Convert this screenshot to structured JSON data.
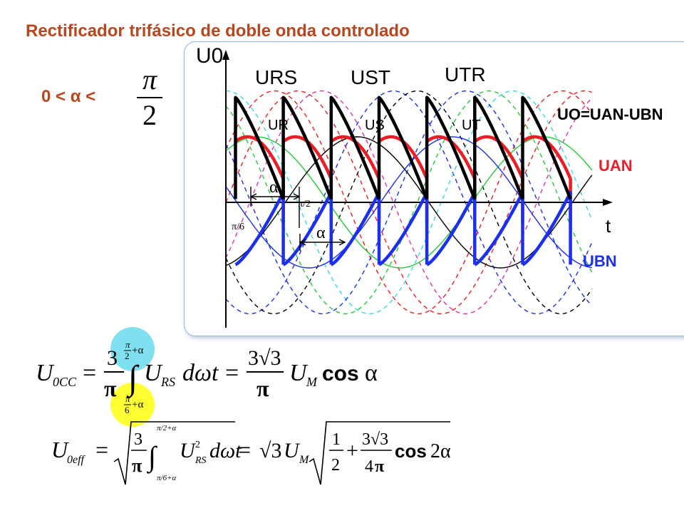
{
  "slide": {
    "title": "Rectificador trifásico de doble onda controlado",
    "condition": "0 < α <",
    "condition_frac_num": "π",
    "condition_frac_den": "2"
  },
  "diagram": {
    "y_axis_label": "U0",
    "x_axis_label": "t",
    "phase_labels": [
      "URS",
      "UST",
      "UTR"
    ],
    "inner_labels": [
      "UR",
      "US",
      "UT"
    ],
    "alpha_label": "α",
    "pi2_label": "π/2",
    "pi6_label": "π/6",
    "uo_label": "UO=UAN-UBN",
    "uan_label": "UAN",
    "ubn_label": "UBN",
    "colors": {
      "uan": "#ee1c24",
      "ubn": "#1a2ff0",
      "output": "#000000",
      "green": "#22cc33",
      "cyan": "#33dddd",
      "magenta": "#dd33aa",
      "title": "#b8461e"
    }
  },
  "equations": {
    "u0cc": "U0CC = (3/π) ∫[π/6+α → π/2+α] URS dωt = (3√3/π) UM cos α",
    "u0eff": "U0eff = √( (3/π) ∫[π/6+α → π/2+α] URS² dωt ) = √3 UM √( 1/2 + (3√3/4π) cos 2α )"
  }
}
